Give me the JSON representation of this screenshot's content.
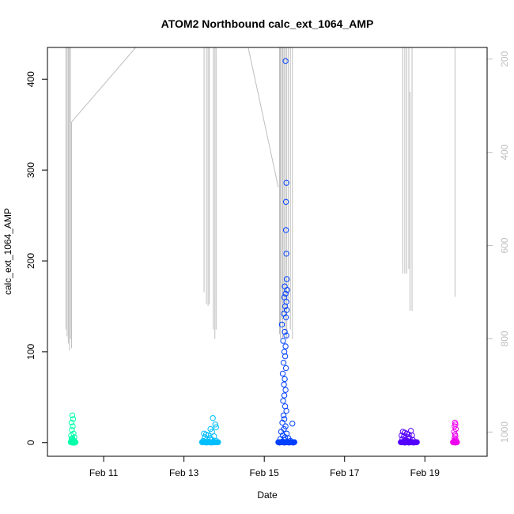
{
  "chart_data": {
    "type": "scatter",
    "title": "ATOM2 Northbound calc_ext_1064_AMP",
    "xlabel": "Date",
    "ylabel": "calc_ext_1064_AMP",
    "x_axis": {
      "unit": "date (days in February)",
      "range": [
        9.6,
        20.55
      ],
      "ticks": [
        11,
        13,
        15,
        17,
        19
      ],
      "tick_labels": [
        "Feb 11",
        "Feb 13",
        "Feb 15",
        "Feb 17",
        "Feb 19"
      ]
    },
    "y_axis_left": {
      "range": [
        -15,
        435
      ],
      "ticks": [
        0,
        100,
        200,
        300,
        400
      ],
      "tick_labels": [
        "0",
        "100",
        "200",
        "300",
        "400"
      ]
    },
    "y_axis_right": {
      "inverted": true,
      "color": "#bebebe",
      "range": [
        1052,
        175
      ],
      "ticks": [
        200,
        400,
        600,
        800,
        1000
      ],
      "tick_labels": [
        "200",
        "400",
        "600",
        "800",
        "1000"
      ]
    },
    "grid": false,
    "legend": "none",
    "series": [
      {
        "color": "#00FFAA",
        "x_range": [
          10.18,
          10.3
        ],
        "points": [
          [
            10.22,
            30
          ],
          [
            10.24,
            26
          ],
          [
            10.2,
            22
          ],
          [
            10.23,
            18
          ],
          [
            10.21,
            14
          ],
          [
            10.25,
            10
          ],
          [
            10.19,
            8
          ],
          [
            10.27,
            6
          ],
          [
            10.22,
            5
          ],
          [
            10.2,
            4
          ],
          [
            10.24,
            3
          ],
          [
            10.26,
            2
          ],
          [
            10.21,
            2
          ],
          [
            10.23,
            1
          ],
          [
            10.19,
            1
          ],
          [
            10.28,
            0
          ],
          [
            10.22,
            0
          ],
          [
            10.25,
            0
          ]
        ]
      },
      {
        "color": "#00BFFF",
        "x_range": [
          13.45,
          13.85
        ],
        "points": [
          [
            13.72,
            27
          ],
          [
            13.78,
            20
          ],
          [
            13.8,
            17
          ],
          [
            13.66,
            15
          ],
          [
            13.7,
            12
          ],
          [
            13.5,
            10
          ],
          [
            13.55,
            9
          ],
          [
            13.6,
            8
          ],
          [
            13.75,
            7
          ],
          [
            13.52,
            6
          ],
          [
            13.65,
            5
          ],
          [
            13.58,
            4
          ],
          [
            13.7,
            3
          ],
          [
            13.48,
            2
          ],
          [
            13.8,
            2
          ],
          [
            13.62,
            1
          ],
          [
            13.74,
            1
          ],
          [
            13.56,
            0
          ],
          [
            13.68,
            0
          ]
        ]
      },
      {
        "color": "#0040FF",
        "x_range": [
          15.35,
          15.75
        ],
        "points": [
          [
            15.53,
            420
          ],
          [
            15.55,
            286
          ],
          [
            15.54,
            265
          ],
          [
            15.54,
            234
          ],
          [
            15.55,
            208
          ],
          [
            15.56,
            180
          ],
          [
            15.51,
            172
          ],
          [
            15.57,
            168
          ],
          [
            15.53,
            164
          ],
          [
            15.5,
            160
          ],
          [
            15.55,
            155
          ],
          [
            15.52,
            150
          ],
          [
            15.56,
            146
          ],
          [
            15.49,
            142
          ],
          [
            15.54,
            138
          ],
          [
            15.44,
            130
          ],
          [
            15.51,
            122
          ],
          [
            15.55,
            118
          ],
          [
            15.47,
            112
          ],
          [
            15.53,
            106
          ],
          [
            15.5,
            100
          ],
          [
            15.52,
            95
          ],
          [
            15.48,
            88
          ],
          [
            15.54,
            82
          ],
          [
            15.46,
            76
          ],
          [
            15.51,
            70
          ],
          [
            15.49,
            64
          ],
          [
            15.53,
            58
          ],
          [
            15.5,
            52
          ],
          [
            15.47,
            46
          ],
          [
            15.52,
            40
          ],
          [
            15.55,
            35
          ],
          [
            15.48,
            30
          ],
          [
            15.5,
            26
          ],
          [
            15.45,
            22
          ],
          [
            15.7,
            21
          ],
          [
            15.53,
            18
          ],
          [
            15.49,
            15
          ],
          [
            15.42,
            12
          ],
          [
            15.56,
            10
          ],
          [
            15.46,
            8
          ],
          [
            15.52,
            6
          ],
          [
            15.6,
            5
          ],
          [
            15.4,
            4
          ],
          [
            15.5,
            3
          ],
          [
            15.65,
            2
          ],
          [
            15.44,
            1
          ],
          [
            15.58,
            1
          ],
          [
            15.38,
            0
          ],
          [
            15.5,
            0
          ],
          [
            15.62,
            0
          ],
          [
            15.72,
            0
          ]
        ]
      },
      {
        "color": "#5500FF",
        "x_range": [
          18.4,
          18.8
        ],
        "points": [
          [
            18.45,
            12
          ],
          [
            18.5,
            11
          ],
          [
            18.55,
            10
          ],
          [
            18.65,
            13
          ],
          [
            18.6,
            9
          ],
          [
            18.42,
            8
          ],
          [
            18.68,
            8
          ],
          [
            18.48,
            7
          ],
          [
            18.58,
            6
          ],
          [
            18.62,
            5
          ],
          [
            18.44,
            4
          ],
          [
            18.52,
            3
          ],
          [
            18.7,
            3
          ],
          [
            18.56,
            2
          ],
          [
            18.46,
            1
          ],
          [
            18.64,
            1
          ],
          [
            18.5,
            0
          ],
          [
            18.6,
            0
          ],
          [
            18.72,
            0
          ]
        ]
      },
      {
        "color": "#EE00EE",
        "x_range": [
          19.7,
          19.8
        ],
        "points": [
          [
            19.75,
            22
          ],
          [
            19.76,
            20
          ],
          [
            19.74,
            18
          ],
          [
            19.77,
            15
          ],
          [
            19.73,
            12
          ],
          [
            19.75,
            9
          ],
          [
            19.76,
            7
          ],
          [
            19.74,
            5
          ],
          [
            19.77,
            3
          ],
          [
            19.73,
            2
          ],
          [
            19.75,
            1
          ],
          [
            19.76,
            0
          ]
        ]
      }
    ],
    "depth_profile": {
      "color": "#bebebe",
      "axis": "right",
      "segments": [
        [
          [
            10.06,
            175
          ],
          [
            10.06,
            780
          ]
        ],
        [
          [
            10.09,
            175
          ],
          [
            10.09,
            795
          ]
        ],
        [
          [
            10.12,
            175
          ],
          [
            10.12,
            810
          ]
        ],
        [
          [
            10.15,
            175
          ],
          [
            10.15,
            825
          ]
        ],
        [
          [
            10.17,
            175
          ],
          [
            10.17,
            800
          ]
        ],
        [
          [
            10.2,
            335
          ],
          [
            10.2,
            820
          ]
        ],
        [
          [
            10.2,
            335
          ],
          [
            11.8,
            175
          ]
        ],
        [
          [
            13.5,
            175
          ],
          [
            13.5,
            700
          ]
        ],
        [
          [
            13.56,
            175
          ],
          [
            13.56,
            725
          ]
        ],
        [
          [
            13.6,
            175
          ],
          [
            13.6,
            730
          ]
        ],
        [
          [
            13.63,
            175
          ],
          [
            13.63,
            725
          ]
        ],
        [
          [
            13.73,
            175
          ],
          [
            13.73,
            780
          ]
        ],
        [
          [
            13.77,
            175
          ],
          [
            13.77,
            800
          ]
        ],
        [
          [
            13.8,
            175
          ],
          [
            13.8,
            780
          ]
        ],
        [
          [
            14.6,
            175
          ],
          [
            15.35,
            475
          ]
        ],
        [
          [
            15.38,
            175
          ],
          [
            15.38,
            790
          ]
        ],
        [
          [
            15.4,
            175
          ],
          [
            15.4,
            800
          ]
        ],
        [
          [
            15.43,
            175
          ],
          [
            15.43,
            760
          ]
        ],
        [
          [
            15.46,
            175
          ],
          [
            15.46,
            800
          ]
        ],
        [
          [
            15.49,
            175
          ],
          [
            15.49,
            745
          ]
        ],
        [
          [
            15.52,
            175
          ],
          [
            15.52,
            790
          ]
        ],
        [
          [
            15.56,
            175
          ],
          [
            15.56,
            800
          ]
        ],
        [
          [
            15.6,
            175
          ],
          [
            15.6,
            720
          ]
        ],
        [
          [
            15.65,
            175
          ],
          [
            15.65,
            780
          ]
        ],
        [
          [
            15.7,
            175
          ],
          [
            15.7,
            800
          ]
        ],
        [
          [
            18.45,
            175
          ],
          [
            18.45,
            660
          ]
        ],
        [
          [
            18.5,
            175
          ],
          [
            18.5,
            660
          ]
        ],
        [
          [
            18.55,
            175
          ],
          [
            18.55,
            660
          ]
        ],
        [
          [
            18.6,
            175
          ],
          [
            18.6,
            650
          ]
        ],
        [
          [
            18.63,
            270
          ],
          [
            18.63,
            740
          ]
        ],
        [
          [
            18.68,
            175
          ],
          [
            18.68,
            740
          ]
        ],
        [
          [
            19.75,
            175
          ],
          [
            19.75,
            710
          ]
        ]
      ]
    }
  }
}
